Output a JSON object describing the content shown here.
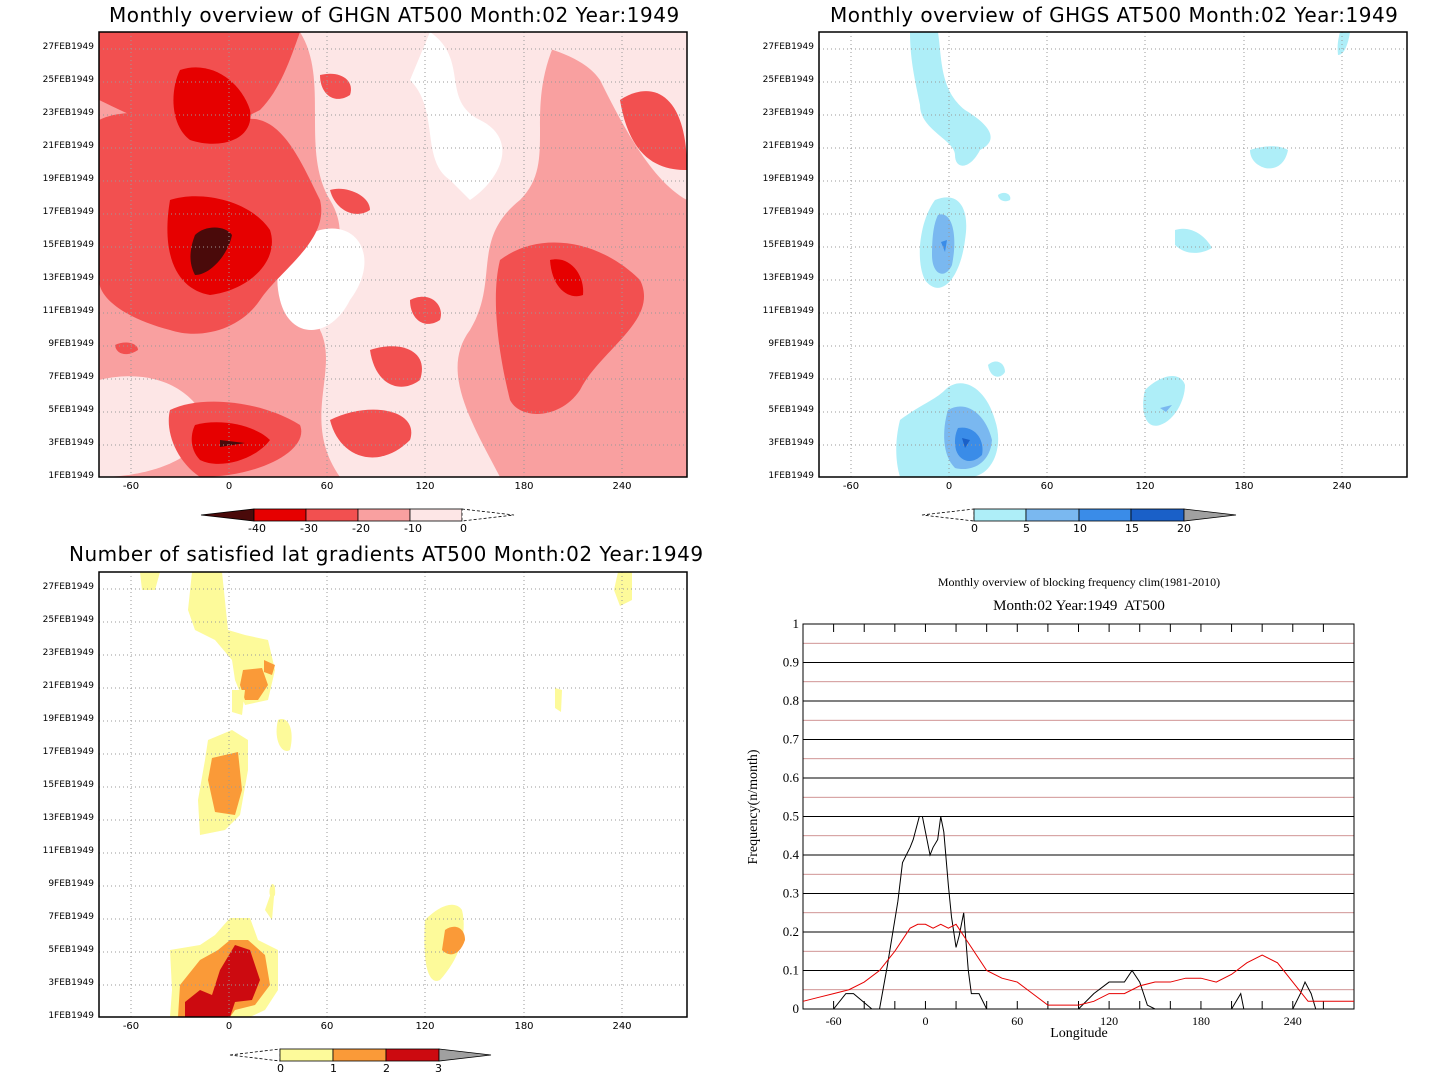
{
  "chart_data": [
    {
      "type": "heatmap",
      "title": "Monthly overview of GHGN AT500 Month:02 Year:1949",
      "x_ticks": [
        "-60",
        "0",
        "60",
        "120",
        "180",
        "240"
      ],
      "y_ticks": [
        "1FEB1949",
        "3FEB1949",
        "5FEB1949",
        "7FEB1949",
        "9FEB1949",
        "11FEB1949",
        "13FEB1949",
        "15FEB1949",
        "17FEB1949",
        "19FEB1949",
        "21FEB1949",
        "23FEB1949",
        "25FEB1949",
        "27FEB1949"
      ],
      "xlim": [
        -78,
        282
      ],
      "colorbar_labels": [
        "-40",
        "-30",
        "-20",
        "-10",
        "0"
      ],
      "colors": [
        "#4a0a0a",
        "#e60000",
        "#f25050",
        "#f9a0a0",
        "#fde6e6",
        "#ffffff"
      ]
    },
    {
      "type": "heatmap",
      "title": "Monthly overview of GHGS AT500 Month:02 Year:1949",
      "x_ticks": [
        "-60",
        "0",
        "60",
        "120",
        "180",
        "240"
      ],
      "y_ticks": [
        "1FEB1949",
        "3FEB1949",
        "5FEB1949",
        "7FEB1949",
        "9FEB1949",
        "11FEB1949",
        "13FEB1949",
        "15FEB1949",
        "17FEB1949",
        "19FEB1949",
        "21FEB1949",
        "23FEB1949",
        "25FEB1949",
        "27FEB1949"
      ],
      "xlim": [
        -78,
        282
      ],
      "colorbar_labels": [
        "0",
        "5",
        "10",
        "15",
        "20"
      ],
      "colors": [
        "#aeeef8",
        "#7ab8f0",
        "#3a8ce8",
        "#1a60c8",
        "#a0a0a0"
      ]
    },
    {
      "type": "heatmap",
      "title": "Number of satisfied lat gradients AT500 Month:02 Year:1949",
      "x_ticks": [
        "-60",
        "0",
        "60",
        "120",
        "180",
        "240"
      ],
      "y_ticks": [
        "1FEB1949",
        "3FEB1949",
        "5FEB1949",
        "7FEB1949",
        "9FEB1949",
        "11FEB1949",
        "13FEB1949",
        "15FEB1949",
        "17FEB1949",
        "19FEB1949",
        "21FEB1949",
        "23FEB1949",
        "25FEB1949",
        "27FEB1949"
      ],
      "xlim": [
        -78,
        282
      ],
      "colorbar_labels": [
        "0",
        "1",
        "2",
        "3"
      ],
      "colors": [
        "#fdfa9a",
        "#fa9a38",
        "#cc0a10",
        "#a0a0a0"
      ]
    },
    {
      "type": "line",
      "title": "Monthly overview of blocking frequency clim(1981-2010)",
      "subtitle": "Month:02 Year:1949  AT500",
      "xlabel": "Longitude",
      "ylabel": "Frequency(n/month)",
      "xlim": [
        -80,
        280
      ],
      "ylim": [
        0,
        1
      ],
      "x_ticks": [
        "-60",
        "0",
        "60",
        "120",
        "180",
        "240"
      ],
      "y_ticks": [
        "0",
        "0.1",
        "0.2",
        "0.3",
        "0.4",
        "0.5",
        "0.6",
        "0.7",
        "0.8",
        "0.9",
        "1"
      ],
      "grid": true,
      "series": [
        {
          "color": "#000000",
          "x": [
            -80,
            -60,
            -52,
            -47,
            -35,
            -30,
            -25,
            -18,
            -15,
            -10,
            -8,
            -4,
            -2,
            0,
            3,
            5,
            8,
            10,
            12,
            15,
            17,
            20,
            22,
            25,
            28,
            30,
            35,
            40,
            45,
            60,
            100,
            110,
            120,
            125,
            130,
            135,
            140,
            145,
            150,
            160,
            200,
            206,
            208,
            212,
            240,
            245,
            248,
            252,
            255,
            280
          ],
          "y": [
            0,
            0,
            0.04,
            0.04,
            0,
            0,
            0.11,
            0.28,
            0.38,
            0.42,
            0.44,
            0.5,
            0.5,
            0.46,
            0.4,
            0.42,
            0.44,
            0.5,
            0.46,
            0.32,
            0.24,
            0.16,
            0.19,
            0.25,
            0.1,
            0.04,
            0.04,
            0.0,
            0,
            0,
            0,
            0.04,
            0.07,
            0.07,
            0.07,
            0.1,
            0.07,
            0.01,
            0,
            0,
            0,
            0.04,
            0,
            0,
            0,
            0.04,
            0.07,
            0.04,
            0,
            0
          ]
        },
        {
          "color": "#e60000",
          "x": [
            -80,
            -70,
            -60,
            -50,
            -40,
            -30,
            -20,
            -15,
            -10,
            -5,
            0,
            5,
            10,
            15,
            20,
            25,
            30,
            40,
            50,
            60,
            70,
            80,
            90,
            100,
            110,
            120,
            130,
            140,
            150,
            160,
            170,
            180,
            190,
            200,
            210,
            220,
            230,
            240,
            250,
            260,
            270,
            280
          ],
          "y": [
            0.02,
            0.03,
            0.04,
            0.05,
            0.07,
            0.1,
            0.15,
            0.18,
            0.21,
            0.22,
            0.22,
            0.21,
            0.22,
            0.21,
            0.22,
            0.19,
            0.16,
            0.1,
            0.08,
            0.07,
            0.04,
            0.01,
            0.01,
            0.01,
            0.02,
            0.04,
            0.04,
            0.06,
            0.07,
            0.07,
            0.08,
            0.08,
            0.07,
            0.09,
            0.12,
            0.14,
            0.12,
            0.07,
            0.02,
            0.02,
            0.02,
            0.02
          ]
        }
      ]
    }
  ]
}
